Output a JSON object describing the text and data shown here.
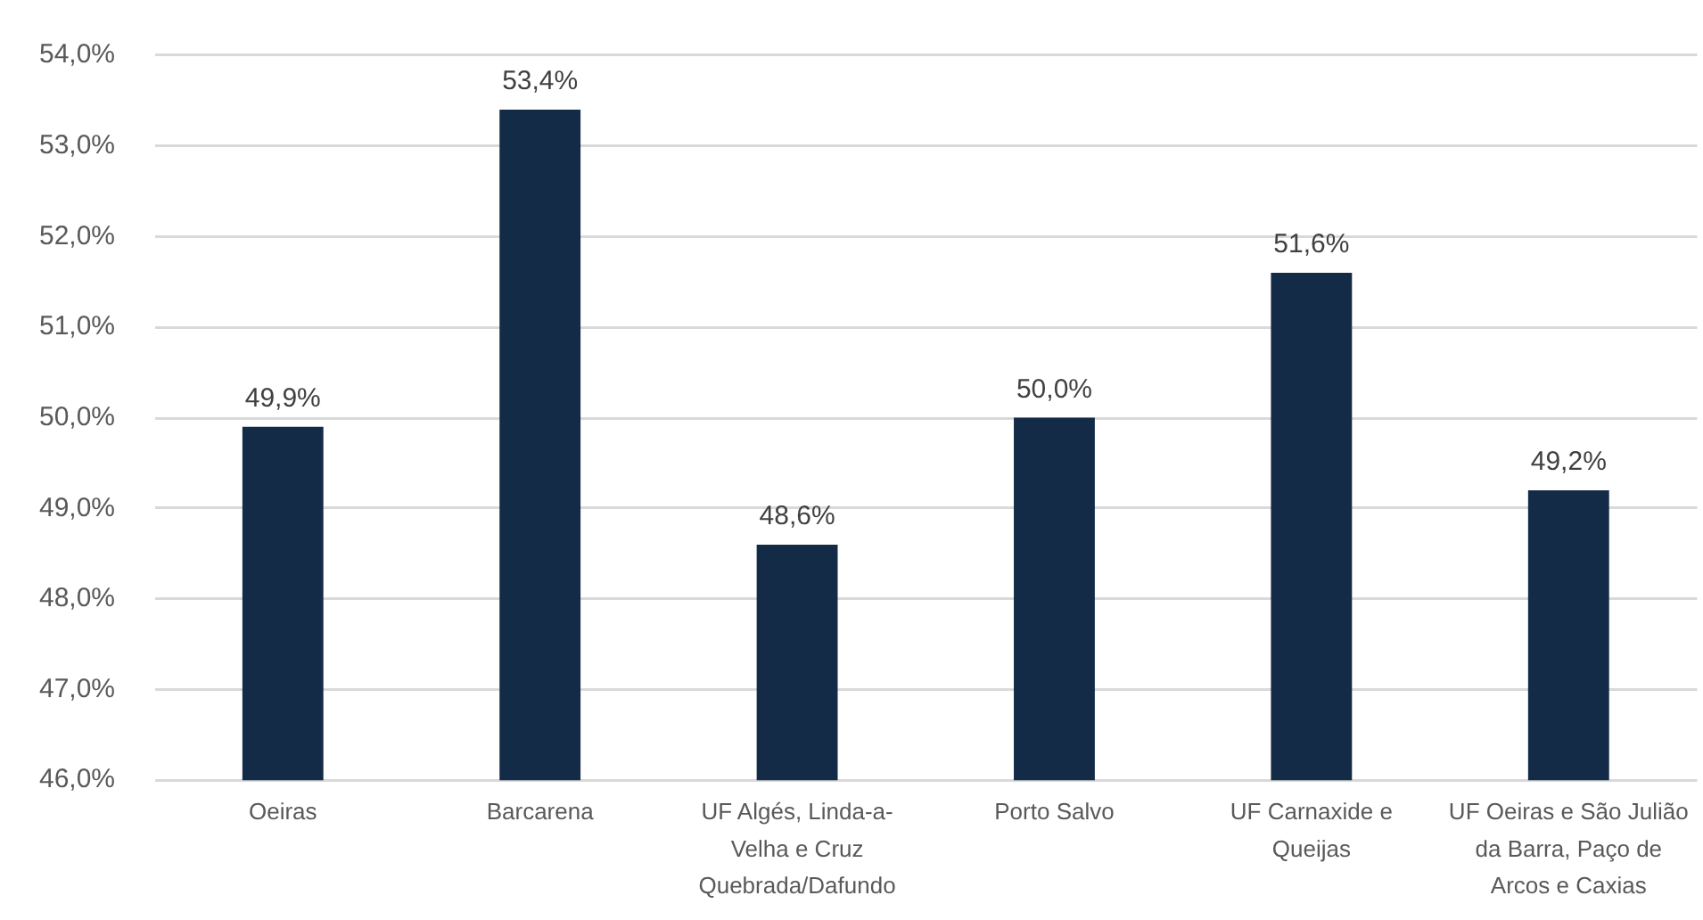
{
  "chart_data": {
    "type": "bar",
    "categories": [
      "Oeiras",
      "Barcarena",
      "UF Algés, Linda-a-Velha e Cruz Quebrada/Dafundo",
      "Porto Salvo",
      "UF Carnaxide e Queijas",
      "UF Oeiras e São Julião da Barra, Paço de Arcos e Caxias"
    ],
    "values": [
      49.9,
      53.4,
      48.6,
      50.0,
      51.6,
      49.2
    ],
    "color": "#132b47",
    "ylim": [
      46,
      54
    ],
    "yticks": [
      {
        "value": 46,
        "label": "46,0%"
      },
      {
        "value": 47,
        "label": "47,0%"
      },
      {
        "value": 48,
        "label": "48,0%"
      },
      {
        "value": 49,
        "label": "49,0%"
      },
      {
        "value": 50,
        "label": "50,0%"
      },
      {
        "value": 51,
        "label": "51,0%"
      },
      {
        "value": 52,
        "label": "52,0%"
      },
      {
        "value": 53,
        "label": "53,0%"
      },
      {
        "value": 54,
        "label": "54,0%"
      }
    ],
    "grid": "y",
    "value_labels": [
      "49,9%",
      "53,4%",
      "48,6%",
      "50,0%",
      "51,6%",
      "49,2%"
    ]
  }
}
